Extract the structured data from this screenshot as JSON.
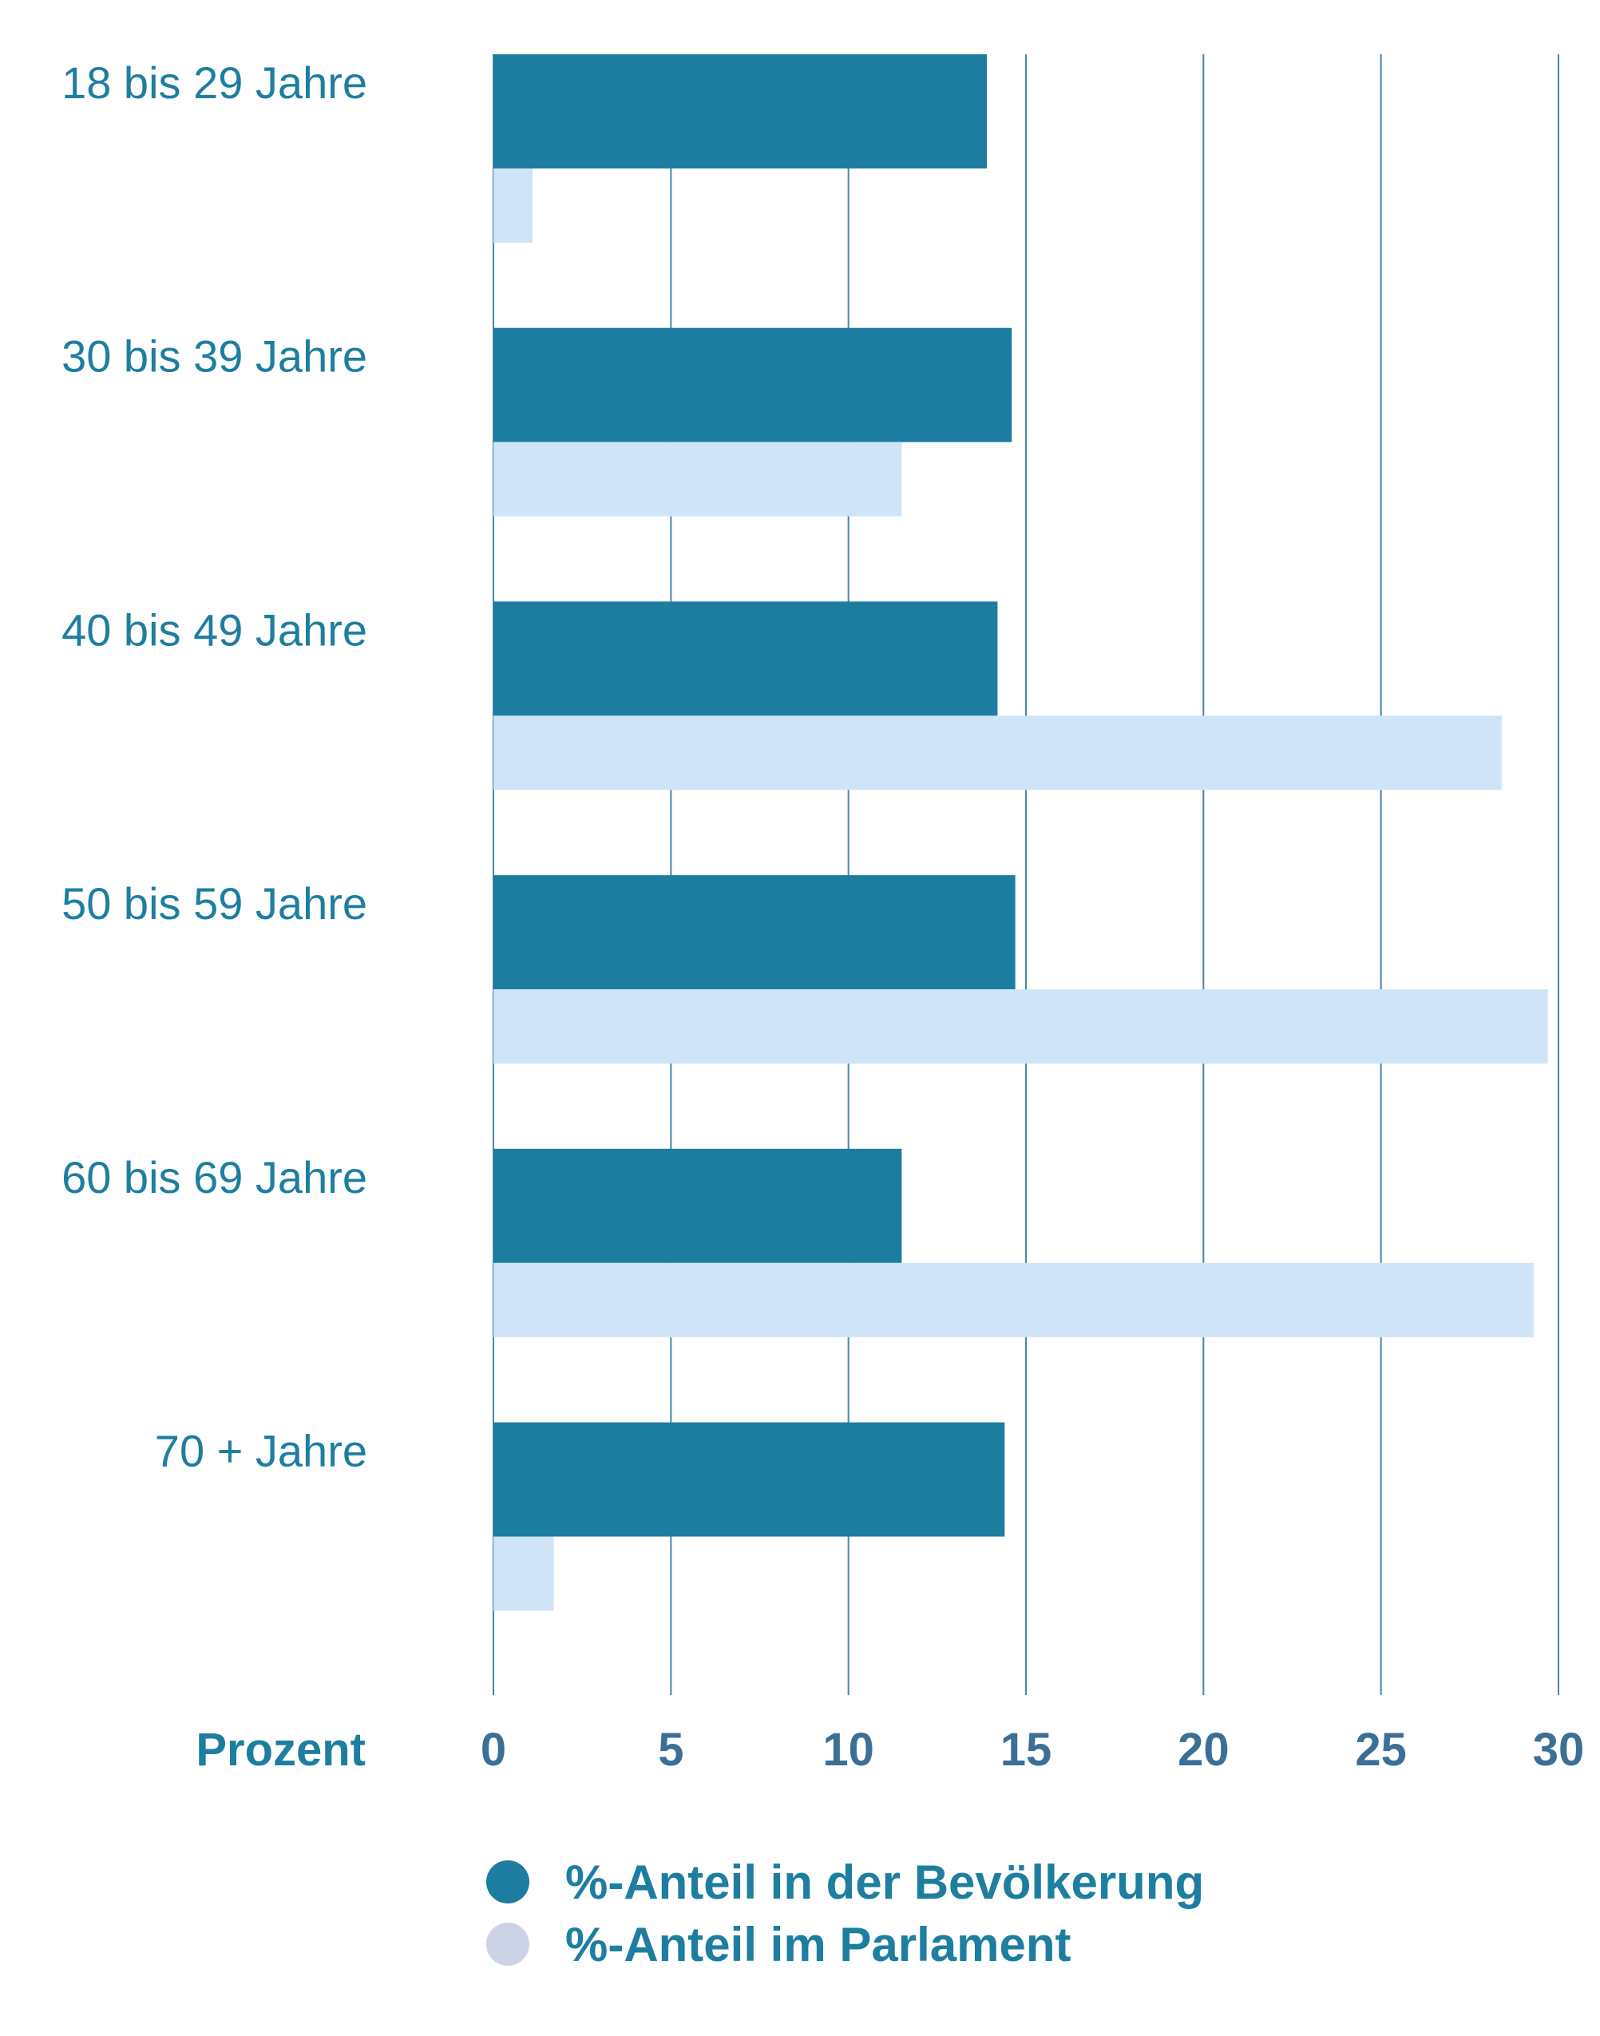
{
  "chart_data": {
    "type": "bar",
    "orientation": "horizontal",
    "title": "",
    "xlabel": "Prozent",
    "ylabel": "",
    "xlim": [
      0,
      30
    ],
    "xticks": [
      0,
      5,
      10,
      15,
      20,
      25,
      30
    ],
    "grid": true,
    "legend_position": "bottom",
    "categories": [
      "18 bis 29 Jahre",
      "30 bis 39 Jahre",
      "40 bis 49 Jahre",
      "50 bis 59 Jahre",
      "60 bis 69 Jahre",
      "70 + Jahre"
    ],
    "series": [
      {
        "name": "%-Anteil in der Bevölkerung",
        "color": "#1c7da0",
        "legend_color": "#1c7da0",
        "values": [
          13.9,
          14.6,
          14.2,
          14.7,
          11.5,
          14.4
        ]
      },
      {
        "name": "%-Anteil im Parlament",
        "color": "#d0e4f7",
        "legend_color": "#ccd3e6",
        "values": [
          1.1,
          11.5,
          28.4,
          29.7,
          29.3,
          1.7
        ]
      }
    ]
  }
}
